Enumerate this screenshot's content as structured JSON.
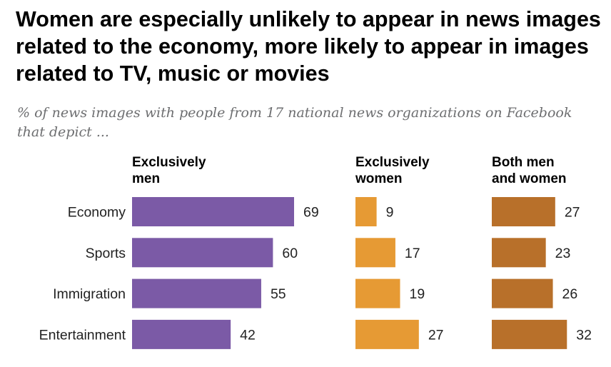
{
  "title": "Women are especially unlikely to appear in news images related to the economy, more likely to appear in images related to TV, music or movies",
  "subtitle": "% of news images with people from 17 national news organizations on Facebook that depict ...",
  "colors": {
    "exclusively_men": "#7b5aa6",
    "exclusively_women": "#e69a34",
    "both_men_and_women": "#b8702a"
  },
  "chart_data": {
    "type": "bar",
    "orientation": "horizontal",
    "categories": [
      "Economy",
      "Sports",
      "Immigration",
      "Entertainment"
    ],
    "series": [
      {
        "name": "Exclusively men",
        "name_lines": [
          "Exclusively",
          "men"
        ],
        "values": [
          69,
          60,
          55,
          42
        ]
      },
      {
        "name": "Exclusively women",
        "name_lines": [
          "Exclusively",
          "women"
        ],
        "values": [
          9,
          17,
          19,
          27
        ]
      },
      {
        "name": "Both men and women",
        "name_lines": [
          "Both men",
          "and women"
        ],
        "values": [
          27,
          23,
          26,
          32
        ]
      }
    ],
    "data_labels": true,
    "grid": false
  }
}
